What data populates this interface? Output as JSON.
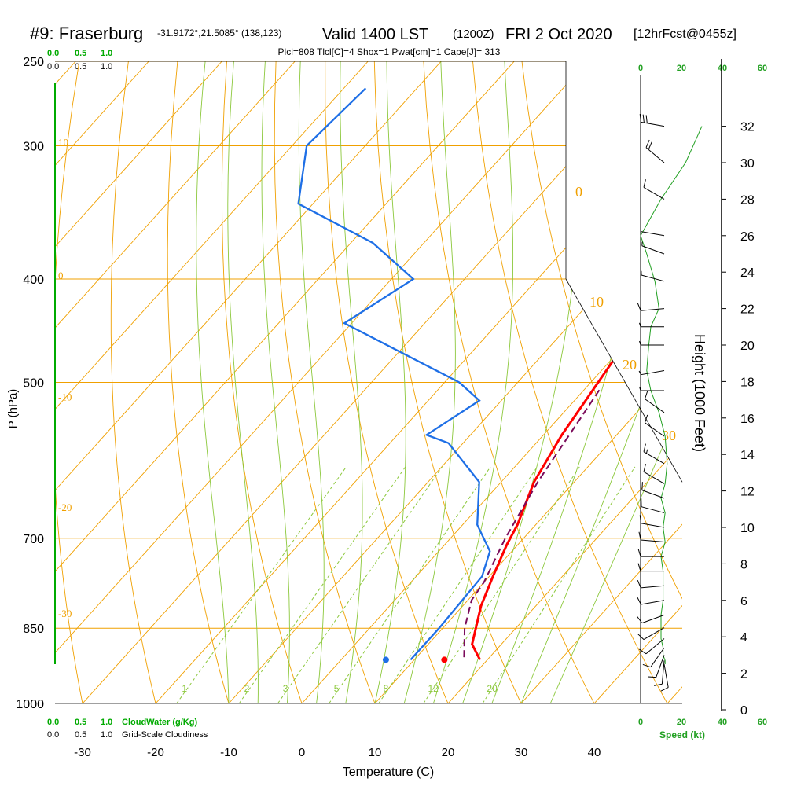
{
  "header": {
    "station": "#9: Fraserburg",
    "coords": "-31.9172°,21.5085° (138,123)",
    "valid_label": "Valid 1400 LST",
    "utc": "(1200Z)",
    "date": "FRI 2 Oct 2020",
    "forecast": "[12hrFcst@0455z]",
    "indices": "Plcl=808 Tlcl[C]=4 Shox=1 Pwat[cm]=1 Cape[J]= 313"
  },
  "colors": {
    "temperature": "#ff0000",
    "dewpoint": "#1e6fe6",
    "parcel": "#7a0a5a",
    "isotherm_isobar": "#f0a000",
    "mixing_ratio": "#8cc83c",
    "cloud_axis": "#00aa00",
    "wind_speed": "#22a022",
    "indices_text": "#a0005a"
  },
  "cloud_scale": {
    "top_green": [
      "0.0",
      "0.5",
      "1.0"
    ],
    "top_black": [
      "0.0",
      "0.5",
      "1.0"
    ],
    "bottom_green": [
      "0.0",
      "0.5",
      "1.0"
    ],
    "bottom_black": [
      "0.0",
      "0.5",
      "1.0"
    ],
    "cloudwater_label": "CloudWater (g/Kg)",
    "cloudiness_label": "Grid-Scale Cloudiness"
  },
  "speed_axis": {
    "ticks": [
      "0",
      "20",
      "40",
      "60"
    ],
    "label": "Speed (kt)"
  },
  "chart_data": {
    "type": "line",
    "title": "",
    "xlabel": "Temperature (C)",
    "ylabel": "P (hPa)",
    "y2label": "Height (1000 Feet)",
    "xlim": [
      -34,
      36
    ],
    "ylim": [
      1000,
      250
    ],
    "xticks": [
      "-30",
      "-20",
      "-10",
      "0",
      "10",
      "20",
      "30",
      "40"
    ],
    "pressure_ticks": [
      "250",
      "300",
      "400",
      "500",
      "700",
      "850",
      "1000"
    ],
    "height_ticks": [
      "0",
      "2",
      "4",
      "6",
      "8",
      "10",
      "12",
      "14",
      "16",
      "18",
      "20",
      "22",
      "24",
      "26",
      "28",
      "30",
      "32"
    ],
    "mixing_ratio_labels": [
      "1",
      "2",
      "3",
      "5",
      "8",
      "12",
      "20"
    ],
    "theta_labels": [
      "10",
      "0",
      "-10",
      "-20",
      "-30"
    ],
    "theta_e_labels": [
      "0",
      "10",
      "20",
      "30"
    ],
    "series": [
      {
        "name": "temperature",
        "points": [
          [
            19,
            910
          ],
          [
            16,
            880
          ],
          [
            12.5,
            810
          ],
          [
            10.5,
            760
          ],
          [
            8.5,
            710
          ],
          [
            7.5,
            680
          ],
          [
            4.5,
            620
          ],
          [
            2.5,
            560
          ],
          [
            1,
            500
          ],
          [
            -1,
            430
          ],
          [
            -1,
            400
          ],
          [
            -1.5,
            370
          ],
          [
            -2.5,
            350
          ],
          [
            -3.5,
            320
          ],
          [
            -4.5,
            300
          ],
          [
            -6,
            265
          ]
        ]
      },
      {
        "name": "dewpoint",
        "points": [
          [
            9.5,
            910
          ],
          [
            9.5,
            850
          ],
          [
            9,
            760
          ],
          [
            7,
            720
          ],
          [
            2,
            680
          ],
          [
            -3,
            620
          ],
          [
            -12,
            570
          ],
          [
            -16,
            560
          ],
          [
            -13,
            520
          ],
          [
            -18,
            500
          ],
          [
            -41,
            440
          ],
          [
            -37,
            400
          ],
          [
            -47,
            370
          ],
          [
            -62,
            340
          ],
          [
            -68,
            300
          ],
          [
            -67,
            265
          ]
        ]
      },
      {
        "name": "parcel",
        "points": [
          [
            16.5,
            905
          ],
          [
            13,
            850
          ],
          [
            10.5,
            800
          ],
          [
            10,
            770
          ],
          [
            7.5,
            700
          ],
          [
            5,
            620
          ],
          [
            3,
            540
          ],
          [
            2,
            505
          ]
        ]
      }
    ],
    "surface_temperature": 19.5,
    "surface_dewpoint": 11.5,
    "surface_pressure": 910,
    "height_profile_kft": [
      2.5,
      2.7,
      3.0,
      3.4,
      3.9,
      4.5,
      5.2,
      6.0,
      6.8,
      7.6,
      8.4,
      9.2,
      10.0,
      10.8,
      11.6,
      12.4,
      13.5,
      15.0,
      16.3,
      17.5,
      18.6,
      20.0,
      21.0,
      22.0,
      23.5,
      25.0,
      26.0,
      28.0,
      30.0,
      32.0
    ],
    "wind_speed_kt": [
      12,
      12,
      11,
      11,
      10,
      10,
      10,
      11,
      11,
      11,
      10,
      12,
      11,
      12,
      10,
      12,
      13,
      12,
      9,
      5,
      3,
      4,
      5,
      9,
      7,
      3,
      0,
      10,
      22,
      30
    ],
    "wind_direction_deg": [
      170,
      185,
      200,
      215,
      230,
      240,
      250,
      260,
      265,
      270,
      270,
      275,
      280,
      285,
      290,
      300,
      300,
      305,
      305,
      270,
      260,
      270,
      270,
      265,
      285,
      290,
      280,
      300,
      310,
      280
    ]
  }
}
